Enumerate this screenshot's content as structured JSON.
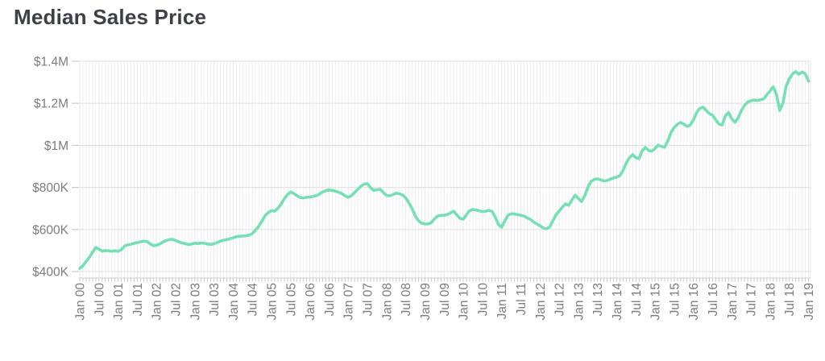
{
  "chart_data": {
    "type": "line",
    "title": "Median Sales Price",
    "series_name": "Median Sales Price",
    "legend": "none",
    "grid": "monthly vertical gridlines; horizontal gridlines every $200K",
    "line_color": "#77dfb4",
    "x_interval": "monthly",
    "x_range": [
      "Jan 2000",
      "Jan 2019"
    ],
    "x_tick_labels": [
      "Jan 00",
      "Jul 00",
      "Jan 01",
      "Jul 01",
      "Jan 02",
      "Jul 02",
      "Jan 03",
      "Jul 03",
      "Jan 04",
      "Jul 04",
      "Jan 05",
      "Jul 05",
      "Jan 06",
      "Jul 06",
      "Jan 07",
      "Jul 07",
      "Jan 08",
      "Jul 08",
      "Jan 09",
      "Jul 09",
      "Jan 10",
      "Jul 10",
      "Jan 11",
      "Jul 11",
      "Jan 12",
      "Jul 12",
      "Jan 13",
      "Jul 13",
      "Jan 14",
      "Jul 14",
      "Jan 15",
      "Jul 15",
      "Jan 16",
      "Jul 16",
      "Jan 17",
      "Jul 17",
      "Jan 18",
      "Jul 18",
      "Jan 19"
    ],
    "y_ticks": [
      {
        "label": "$400K",
        "value": 400
      },
      {
        "label": "$600K",
        "value": 600
      },
      {
        "label": "$800K",
        "value": 800
      },
      {
        "label": "$1M",
        "value": 1000
      },
      {
        "label": "$1.2M",
        "value": 1200
      },
      {
        "label": "$1.4M",
        "value": 1400
      }
    ],
    "ylim": [
      400,
      1400
    ],
    "unit": "USD thousands",
    "values_k": [
      415,
      428,
      448,
      468,
      492,
      515,
      507,
      497,
      500,
      499,
      496,
      499,
      496,
      504,
      521,
      527,
      530,
      534,
      538,
      541,
      545,
      543,
      532,
      523,
      525,
      531,
      540,
      547,
      552,
      553,
      548,
      541,
      536,
      533,
      528,
      531,
      535,
      533,
      536,
      534,
      531,
      529,
      532,
      538,
      545,
      549,
      552,
      556,
      560,
      566,
      568,
      569,
      570,
      573,
      581,
      597,
      616,
      640,
      666,
      681,
      690,
      687,
      701,
      721,
      746,
      766,
      779,
      771,
      760,
      752,
      750,
      753,
      754,
      757,
      761,
      769,
      778,
      785,
      788,
      786,
      782,
      777,
      771,
      760,
      753,
      761,
      776,
      791,
      806,
      816,
      818,
      798,
      786,
      789,
      791,
      776,
      762,
      760,
      766,
      773,
      770,
      764,
      750,
      726,
      699,
      664,
      641,
      630,
      627,
      626,
      633,
      651,
      664,
      668,
      667,
      671,
      679,
      687,
      669,
      652,
      650,
      671,
      690,
      695,
      693,
      689,
      685,
      687,
      691,
      686,
      659,
      623,
      611,
      641,
      668,
      675,
      673,
      671,
      668,
      664,
      655,
      648,
      636,
      626,
      618,
      607,
      603,
      611,
      641,
      669,
      688,
      706,
      722,
      715,
      741,
      763,
      748,
      733,
      761,
      801,
      829,
      838,
      841,
      836,
      831,
      833,
      840,
      845,
      849,
      856,
      881,
      917,
      941,
      956,
      941,
      937,
      976,
      990,
      976,
      972,
      986,
      1001,
      995,
      991,
      1021,
      1061,
      1086,
      1100,
      1109,
      1101,
      1090,
      1096,
      1121,
      1156,
      1176,
      1182,
      1166,
      1151,
      1143,
      1121,
      1101,
      1097,
      1141,
      1156,
      1126,
      1110,
      1131,
      1166,
      1191,
      1206,
      1212,
      1216,
      1213,
      1217,
      1221,
      1241,
      1259,
      1278,
      1241,
      1166,
      1201,
      1281,
      1316,
      1340,
      1351,
      1338,
      1349,
      1340,
      1306
    ]
  },
  "colors": {
    "title_text": "#3d4147",
    "axis_label_text": "#7a7c80",
    "h_gridline": "#e5e3e2",
    "v_gridline_minor": "#efefef",
    "v_gridline_major": "#e7e7e7",
    "axis_line": "#d8d8d8",
    "tick": "#c9c9c9",
    "background": "#ffffff"
  }
}
